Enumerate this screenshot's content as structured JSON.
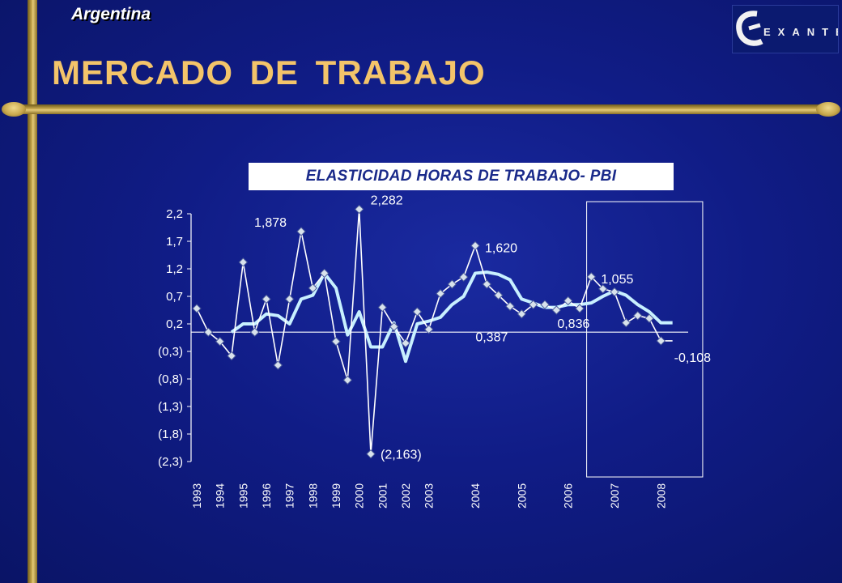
{
  "header": {
    "country": "Argentina",
    "title": "MERCADO DE TRABAJO",
    "logo_text": "EXANTE"
  },
  "colors": {
    "background": "#101c86",
    "accent_gold": "#c9a94e",
    "title": "#f3c46a",
    "series_thin": "#ffffff",
    "series_thick": "#c8f0ff",
    "marker_fill": "#d8e2ec"
  },
  "chart_data": {
    "type": "line",
    "title": "ELASTICIDAD HORAS DE TRABAJO- PBI",
    "ylim": [
      -2.3,
      2.2
    ],
    "yticks": [
      "2,2",
      "1,7",
      "1,2",
      "0,7",
      "0,2",
      "(0,3)",
      "(0,8)",
      "(1,3)",
      "(1,8)",
      "(2,3)"
    ],
    "ytick_values": [
      2.2,
      1.7,
      1.2,
      0.7,
      0.2,
      -0.3,
      -0.8,
      -1.3,
      -1.8,
      -2.3
    ],
    "x_labels": [
      "1993",
      "1994",
      "1995",
      "1996",
      "1997",
      "1998",
      "1999",
      "2000",
      "2001",
      "2002",
      "2003",
      "2004",
      "2005",
      "2006",
      "2007",
      "2008"
    ],
    "x_label_positions": [
      0,
      1,
      2,
      3,
      4,
      5,
      6,
      7,
      8,
      9,
      10,
      12,
      14,
      16,
      18,
      20
    ],
    "x_range": [
      0,
      21
    ],
    "series": [
      {
        "x": [
          0,
          0.5,
          1,
          1.5,
          2,
          2.5,
          3,
          3.5,
          4,
          4.5,
          5,
          5.5,
          6,
          6.5,
          7,
          7.5,
          8,
          8.5,
          9,
          9.5,
          10,
          10.5,
          11,
          11.5,
          12,
          12.5,
          13,
          13.5,
          14,
          14.5,
          15,
          15.5,
          16,
          16.5,
          17,
          17.5,
          18,
          18.5,
          19,
          19.5,
          20,
          20.5
        ],
        "values": [
          0.48,
          0.05,
          -0.12,
          -0.38,
          1.32,
          0.05,
          0.65,
          -0.55,
          0.65,
          1.878,
          0.85,
          1.12,
          -0.12,
          -0.82,
          2.282,
          -2.163,
          0.5,
          0.15,
          -0.15,
          0.42,
          0.1,
          0.75,
          0.92,
          1.05,
          1.62,
          0.92,
          0.72,
          0.52,
          0.38,
          0.55,
          0.55,
          0.45,
          0.62,
          0.48,
          1.055,
          0.836,
          0.78,
          0.22,
          0.35,
          0.3,
          -0.108,
          -0.108
        ]
      },
      {
        "x": [
          1.5,
          2,
          2.5,
          3,
          3.5,
          4,
          4.5,
          5,
          5.5,
          6,
          6.5,
          7,
          7.5,
          8,
          8.5,
          9,
          9.5,
          10,
          10.5,
          11,
          11.5,
          12,
          12.5,
          13,
          13.5,
          14,
          14.5,
          15,
          15.5,
          16,
          16.5,
          17,
          17.5,
          18,
          18.5,
          19,
          19.5,
          20,
          20.5
        ],
        "values": [
          0.05,
          0.2,
          0.2,
          0.38,
          0.35,
          0.2,
          0.65,
          0.72,
          1.12,
          0.85,
          0.0,
          0.42,
          -0.22,
          -0.22,
          0.22,
          -0.48,
          0.2,
          0.25,
          0.32,
          0.55,
          0.7,
          1.12,
          1.14,
          1.1,
          1.0,
          0.65,
          0.58,
          0.5,
          0.5,
          0.55,
          0.55,
          0.58,
          0.7,
          0.8,
          0.72,
          0.55,
          0.42,
          0.22,
          0.22
        ]
      }
    ],
    "annotations": [
      {
        "text": "1,878",
        "x": 4.5,
        "y": 1.878
      },
      {
        "text": "2,282",
        "x": 7,
        "y": 2.282
      },
      {
        "text": "1,620",
        "x": 12,
        "y": 1.62
      },
      {
        "text": "0,387",
        "x": 12.5,
        "y": 0.387
      },
      {
        "text": "(2,163)",
        "x": 7.5,
        "y": -2.163
      },
      {
        "text": "1,055",
        "x": 17,
        "y": 1.055
      },
      {
        "text": "0,836",
        "x": 17,
        "y": 0.836
      },
      {
        "text": "-0,108",
        "x": 20.5,
        "y": -0.108
      }
    ],
    "highlight_box": {
      "x_from": 16.8,
      "x_to": 21.8,
      "y_from": 2.42,
      "y_to": -2.58
    }
  }
}
